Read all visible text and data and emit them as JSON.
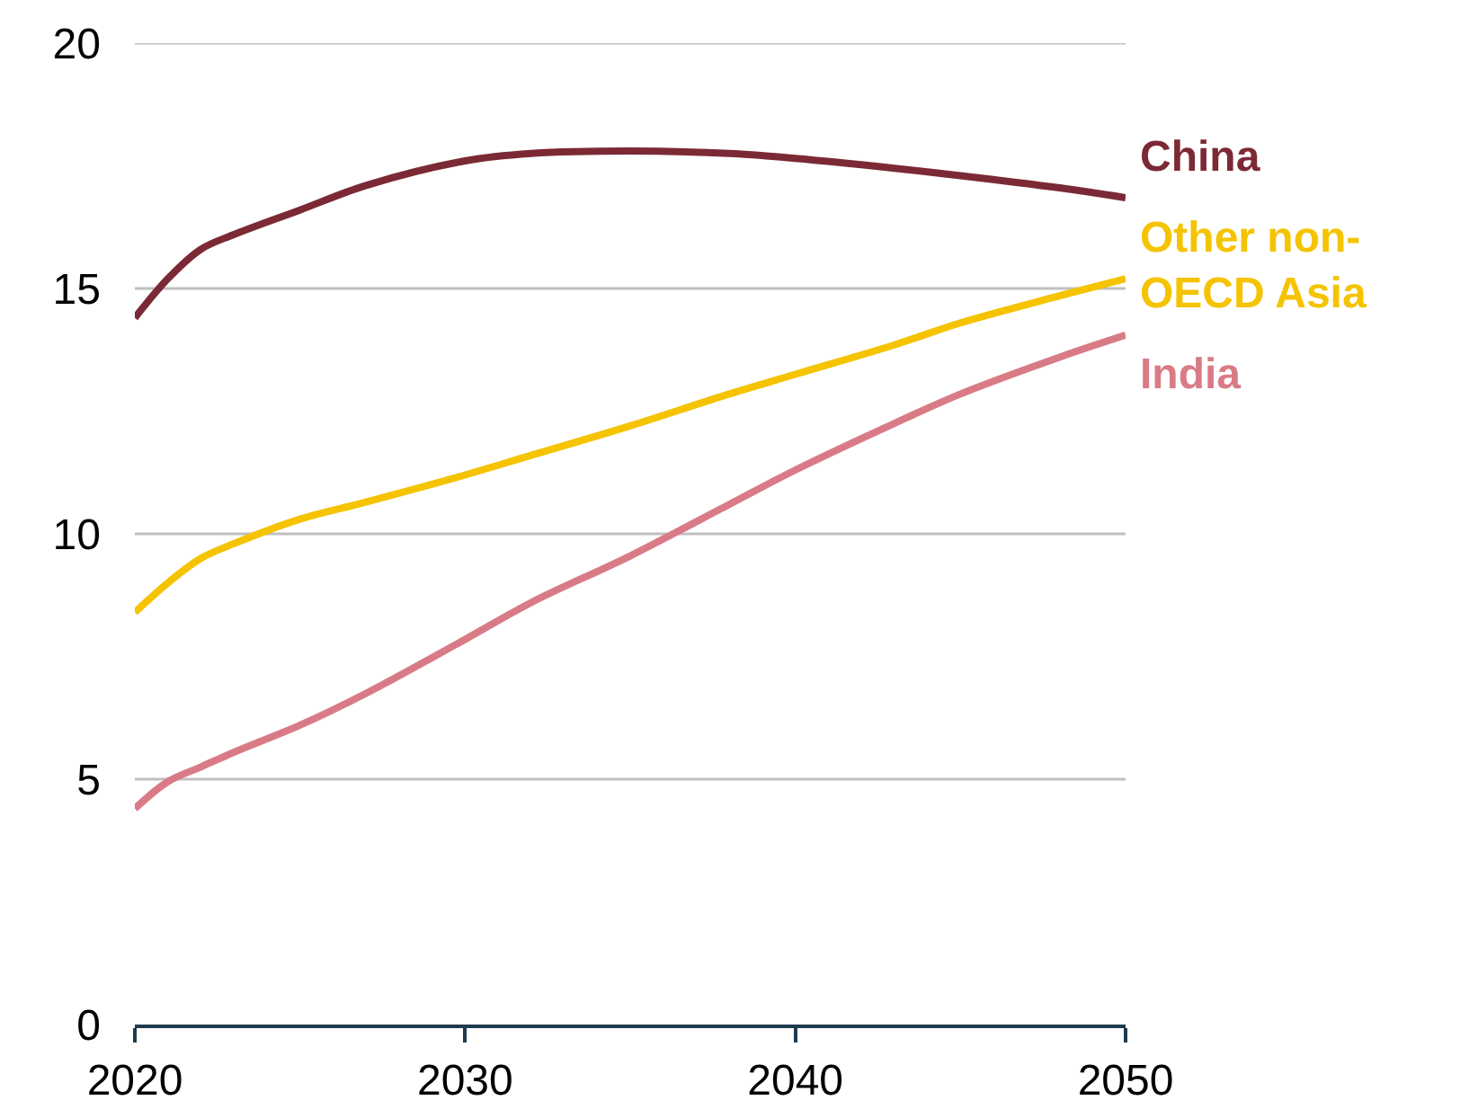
{
  "chart_data": {
    "type": "line",
    "x": [
      2020,
      2021,
      2022,
      2023,
      2025,
      2027,
      2030,
      2032,
      2035,
      2038,
      2040,
      2043,
      2045,
      2048,
      2050
    ],
    "series": [
      {
        "name": "China",
        "color": "#7b2a35",
        "values": [
          14.4,
          15.2,
          15.8,
          16.1,
          16.6,
          17.1,
          17.6,
          17.75,
          17.8,
          17.75,
          17.65,
          17.45,
          17.3,
          17.05,
          16.85
        ]
      },
      {
        "name": "Other non-OECD Asia",
        "color": "#f5c300",
        "values": [
          8.4,
          9.0,
          9.5,
          9.8,
          10.3,
          10.65,
          11.2,
          11.6,
          12.2,
          12.85,
          13.25,
          13.85,
          14.3,
          14.85,
          15.2
        ]
      },
      {
        "name": "India",
        "color": "#d97b86",
        "values": [
          4.4,
          4.95,
          5.25,
          5.55,
          6.1,
          6.75,
          7.85,
          8.6,
          9.55,
          10.6,
          11.3,
          12.25,
          12.85,
          13.6,
          14.05
        ]
      }
    ],
    "xlim": [
      2020,
      2050
    ],
    "xticks": [
      2020,
      2030,
      2040,
      2050
    ],
    "ylim": [
      0,
      20
    ],
    "yticks": [
      0,
      5,
      10,
      15,
      20
    ],
    "grid": "y",
    "legend": false
  }
}
